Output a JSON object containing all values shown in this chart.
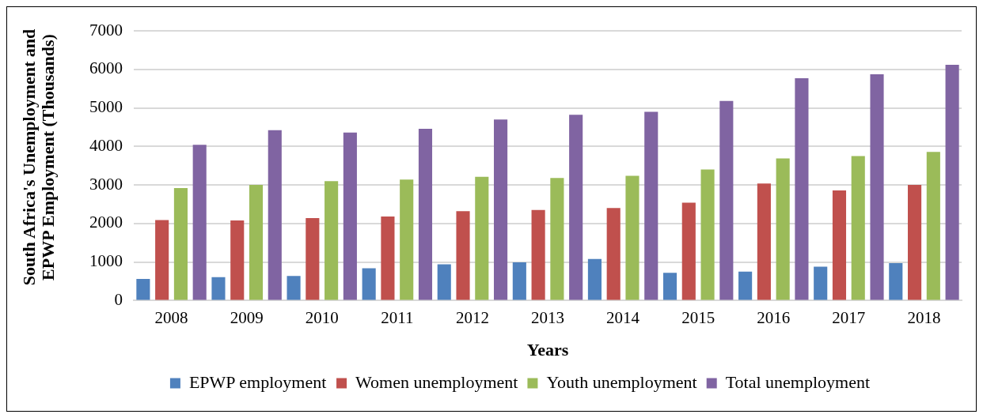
{
  "chart_data": {
    "type": "bar",
    "xlabel": "Years",
    "ylabel": "South Africa's Unemployment and EPWP Employment (Thousands)",
    "categories": [
      "2008",
      "2009",
      "2010",
      "2011",
      "2012",
      "2013",
      "2014",
      "2015",
      "2016",
      "2017",
      "2018"
    ],
    "series": [
      {
        "name": "EPWP employment",
        "color": "#4f81bd",
        "values": [
          560,
          610,
          640,
          840,
          940,
          990,
          1080,
          720,
          750,
          880,
          970
        ]
      },
      {
        "name": "Women unemployment",
        "color": "#c0504d",
        "values": [
          2090,
          2080,
          2140,
          2180,
          2320,
          2350,
          2400,
          2540,
          3040,
          2860,
          3000
        ]
      },
      {
        "name": "Youth unemployment",
        "color": "#9bbb59",
        "values": [
          2920,
          3000,
          3100,
          3140,
          3210,
          3180,
          3240,
          3400,
          3690,
          3750,
          3860
        ]
      },
      {
        "name": "Total unemployment",
        "color": "#8064a2",
        "values": [
          4040,
          4420,
          4360,
          4460,
          4700,
          4820,
          4900,
          5180,
          5770,
          5870,
          6120
        ]
      }
    ],
    "ylim": [
      0,
      7000
    ],
    "yticks": [
      0,
      1000,
      2000,
      3000,
      4000,
      5000,
      6000,
      7000
    ],
    "grid": "y",
    "legend": "bottom"
  }
}
